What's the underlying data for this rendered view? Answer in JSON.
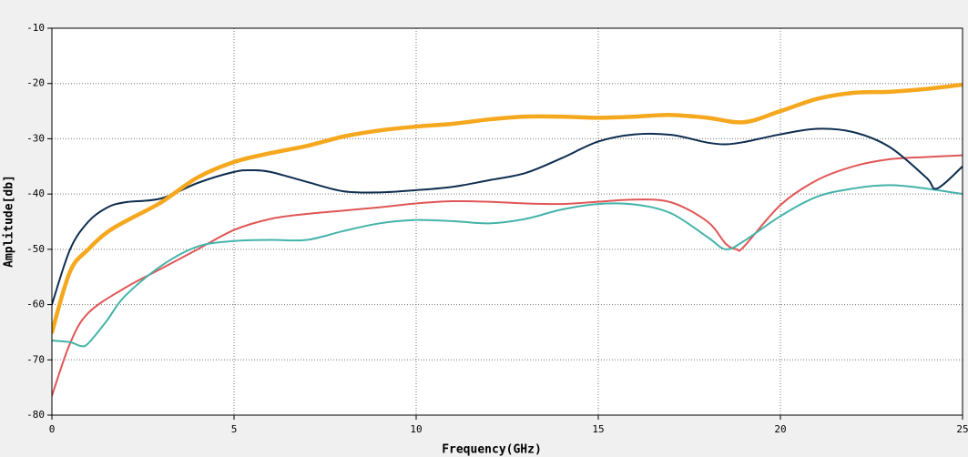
{
  "chart_data": {
    "type": "line",
    "x_label": "Frequency(GHz)",
    "y_label": "Amplitude[db]",
    "xlim": [
      0,
      25
    ],
    "ylim": [
      -80,
      -10
    ],
    "xticks": [
      0,
      5,
      10,
      15,
      20,
      25
    ],
    "yticks": [
      -10,
      -20,
      -30,
      -40,
      -50,
      -60,
      -70,
      -80
    ],
    "grid": true,
    "series": [
      {
        "color": "#e05656",
        "width": 2,
        "x": [
          0,
          0.5,
          1,
          2,
          3,
          4,
          5,
          6,
          7,
          8,
          9,
          10,
          11,
          12,
          13,
          14,
          15,
          16,
          17,
          18,
          18.5,
          18.8,
          19,
          20,
          21,
          22,
          23,
          24,
          25
        ],
        "values": [
          -76.5,
          -67,
          -61.5,
          -57,
          -53.5,
          -50,
          -46.5,
          -44.5,
          -43.6,
          -43,
          -42.4,
          -41.7,
          -41.3,
          -41.4,
          -41.7,
          -41.8,
          -41.4,
          -41,
          -41.5,
          -45,
          -49,
          -50,
          -49.5,
          -42,
          -37.5,
          -35,
          -33.7,
          -33.3,
          -33
        ]
      },
      {
        "color": "#44b3aa",
        "width": 2,
        "x": [
          0,
          0.5,
          0.8,
          1,
          1.5,
          2,
          3,
          4,
          5,
          6,
          7,
          8,
          9,
          10,
          11,
          12,
          13,
          14,
          15,
          16,
          17,
          18,
          18.5,
          19,
          20,
          21,
          22,
          23,
          24,
          25
        ],
        "values": [
          -66.5,
          -66.8,
          -67.5,
          -67,
          -63,
          -58.5,
          -53,
          -49.5,
          -48.5,
          -48.3,
          -48.3,
          -46.7,
          -45.3,
          -44.7,
          -44.9,
          -45.3,
          -44.5,
          -42.8,
          -41.8,
          -41.9,
          -43.5,
          -47.8,
          -50,
          -48.5,
          -44,
          -40.5,
          -39,
          -38.4,
          -39,
          -40
        ]
      },
      {
        "color": "#0e2d4f",
        "width": 2,
        "x": [
          0,
          0.5,
          1,
          1.5,
          2,
          3,
          4,
          5,
          5.5,
          6,
          7,
          8,
          9,
          10,
          11,
          12,
          13,
          14,
          15,
          16,
          17,
          18,
          18.5,
          19,
          20,
          21,
          22,
          23,
          24,
          24.3,
          25
        ],
        "values": [
          -60,
          -50,
          -45,
          -42.5,
          -41.5,
          -40.8,
          -38,
          -36,
          -35.7,
          -36,
          -37.8,
          -39.5,
          -39.7,
          -39.3,
          -38.7,
          -37.5,
          -36.2,
          -33.5,
          -30.5,
          -29.2,
          -29.3,
          -30.7,
          -31,
          -30.6,
          -29.2,
          -28.2,
          -28.8,
          -31.5,
          -37,
          -39,
          -35
        ]
      },
      {
        "color": "#f5a81e",
        "width": 4.5,
        "x": [
          0,
          0.5,
          1,
          1.5,
          2,
          3,
          4,
          5,
          6,
          7,
          8,
          9,
          10,
          11,
          12,
          13,
          14,
          15,
          16,
          17,
          18,
          19,
          20,
          21,
          22,
          23,
          24,
          25
        ],
        "values": [
          -65,
          -54,
          -50,
          -47,
          -45,
          -41.5,
          -37,
          -34.2,
          -32.6,
          -31.3,
          -29.6,
          -28.5,
          -27.8,
          -27.3,
          -26.5,
          -26,
          -26,
          -26.2,
          -26,
          -25.7,
          -26.2,
          -27,
          -25,
          -22.8,
          -21.7,
          -21.5,
          -21,
          -20.2
        ]
      }
    ]
  }
}
